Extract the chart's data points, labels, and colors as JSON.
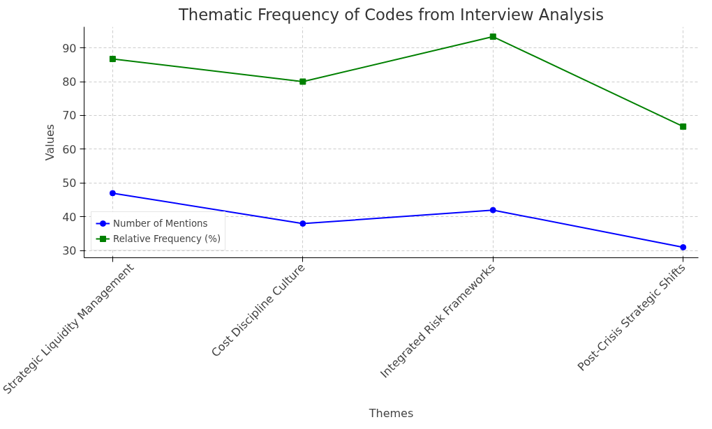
{
  "chart_data": {
    "type": "line",
    "title": "Thematic Frequency of Codes from Interview Analysis",
    "xlabel": "Themes",
    "ylabel": "Values",
    "categories": [
      "Strategic Liquidity Management",
      "Cost Discipline Culture",
      "Integrated Risk Frameworks",
      "Post-Crisis Strategic Shifts"
    ],
    "series": [
      {
        "name": "Number of Mentions",
        "color": "#0000ff",
        "marker": "circle",
        "values": [
          47,
          38,
          42,
          31
        ]
      },
      {
        "name": "Relative Frequency (%)",
        "color": "#008000",
        "marker": "square",
        "values": [
          86.7,
          80,
          93.3,
          66.7
        ]
      }
    ],
    "ylim": [
      27.9,
      96.2
    ],
    "yticks": [
      30,
      40,
      50,
      60,
      70,
      80,
      90
    ],
    "grid": true,
    "legend": "bottom left",
    "line_style": "solid"
  }
}
